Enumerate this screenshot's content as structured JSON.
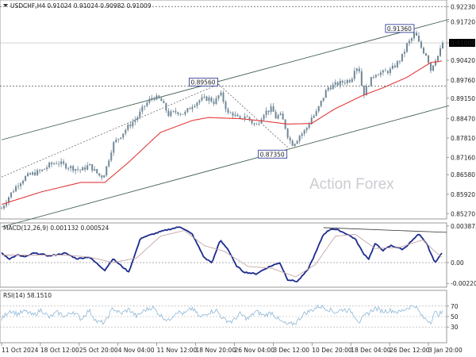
{
  "header": {
    "symbol_line": "USDCHF,H4  0.91024 0.91024 0.90982 0.91009"
  },
  "watermark": "Action Forex",
  "colors": {
    "candle": "#6f8796",
    "ma": "#e23a3a",
    "channel": "#41604c",
    "macd": "#1b2a8c",
    "signal": "#c4a6a6",
    "rsi": "#8fb7d6",
    "level_dash": "#555555",
    "price_box": "#ffffff"
  },
  "chart_data": [
    {
      "type": "candlestick",
      "name": "main",
      "title": "USDCHF,H4  0.91024 0.91024 0.90982 0.91009",
      "ylim": [
        0.8509,
        0.9245
      ],
      "y_ticks": [
        "0.92230",
        "0.91720",
        "0.91009",
        "0.90420",
        "0.89760",
        "0.89150",
        "0.88470",
        "0.87810",
        "0.87160",
        "0.86580",
        "0.85920",
        "0.85270"
      ],
      "y_tick_values": [
        0.9223,
        0.9172,
        0.91009,
        0.9042,
        0.8976,
        0.8915,
        0.8847,
        0.8781,
        0.8716,
        0.8658,
        0.8592,
        0.8527
      ],
      "current_price": 0.91009,
      "levels": [
        {
          "value": 0.9223,
          "label": "0.92230",
          "style": "dashed"
        },
        {
          "value": 0.8956,
          "label": "0.89560",
          "style": "dashed"
        }
      ],
      "annotations": [
        {
          "label": "0.89560",
          "value": 0.8956
        },
        {
          "label": "0.87350",
          "value": 0.8735
        },
        {
          "label": "0.91360",
          "value": 0.9136
        }
      ],
      "close_keypoints": [
        [
          0,
          0.8545
        ],
        [
          10,
          0.8588
        ],
        [
          20,
          0.8625
        ],
        [
          30,
          0.865
        ],
        [
          40,
          0.8662
        ],
        [
          50,
          0.867
        ],
        [
          60,
          0.869
        ],
        [
          70,
          0.87
        ],
        [
          80,
          0.8688
        ],
        [
          90,
          0.868
        ],
        [
          100,
          0.8672
        ],
        [
          110,
          0.869
        ],
        [
          118,
          0.8668
        ],
        [
          125,
          0.865
        ],
        [
          130,
          0.8665
        ],
        [
          140,
          0.876
        ],
        [
          150,
          0.879
        ],
        [
          160,
          0.8822
        ],
        [
          170,
          0.8848
        ],
        [
          180,
          0.889
        ],
        [
          190,
          0.892
        ],
        [
          200,
          0.891
        ],
        [
          210,
          0.886
        ],
        [
          220,
          0.887
        ],
        [
          230,
          0.8862
        ],
        [
          240,
          0.8892
        ],
        [
          250,
          0.891
        ],
        [
          260,
          0.8915
        ],
        [
          268,
          0.89
        ],
        [
          275,
          0.8932
        ],
        [
          280,
          0.89
        ],
        [
          285,
          0.8862
        ],
        [
          290,
          0.8865
        ],
        [
          300,
          0.884
        ],
        [
          305,
          0.8858
        ],
        [
          310,
          0.8848
        ],
        [
          320,
          0.882
        ],
        [
          330,
          0.8866
        ],
        [
          340,
          0.888
        ],
        [
          345,
          0.885
        ],
        [
          350,
          0.886
        ],
        [
          355,
          0.8835
        ],
        [
          360,
          0.879
        ],
        [
          365,
          0.876
        ],
        [
          370,
          0.877
        ],
        [
          375,
          0.879
        ],
        [
          380,
          0.88
        ],
        [
          385,
          0.882
        ],
        [
          390,
          0.885
        ],
        [
          395,
          0.886
        ],
        [
          400,
          0.889
        ],
        [
          410,
          0.895
        ],
        [
          420,
          0.896
        ],
        [
          430,
          0.897
        ],
        [
          440,
          0.8978
        ],
        [
          445,
          0.9025
        ],
        [
          450,
          0.901
        ],
        [
          455,
          0.8925
        ],
        [
          460,
          0.8955
        ],
        [
          470,
          0.9
        ],
        [
          480,
          0.9
        ],
        [
          490,
          0.901
        ],
        [
          500,
          0.904
        ],
        [
          505,
          0.906
        ],
        [
          510,
          0.9095
        ],
        [
          515,
          0.911
        ],
        [
          520,
          0.9136
        ],
        [
          525,
          0.91
        ],
        [
          530,
          0.9075
        ],
        [
          535,
          0.906
        ],
        [
          540,
          0.901
        ],
        [
          545,
          0.9045
        ],
        [
          550,
          0.906
        ],
        [
          555,
          0.9101
        ]
      ],
      "ma_keypoints": [
        [
          0,
          0.8558
        ],
        [
          50,
          0.86
        ],
        [
          100,
          0.8632
        ],
        [
          130,
          0.8632
        ],
        [
          160,
          0.87
        ],
        [
          200,
          0.88
        ],
        [
          240,
          0.884
        ],
        [
          260,
          0.885
        ],
        [
          300,
          0.8846
        ],
        [
          330,
          0.8838
        ],
        [
          360,
          0.8828
        ],
        [
          390,
          0.883
        ],
        [
          420,
          0.888
        ],
        [
          455,
          0.8925
        ],
        [
          480,
          0.895
        ],
        [
          510,
          0.8985
        ],
        [
          540,
          0.9035
        ],
        [
          555,
          0.904
        ]
      ],
      "channel_lines": [
        {
          "from": [
            0,
            0.8775
          ],
          "to": [
            563,
            0.918
          ]
        },
        {
          "from": [
            0,
            0.8482
          ],
          "to": [
            563,
            0.889
          ]
        },
        {
          "from": [
            0,
            0.865
          ],
          "to": [
            273,
            0.8962
          ],
          "style": "dotted"
        },
        {
          "from": [
            273,
            0.8962
          ],
          "to": [
            360,
            0.875
          ],
          "style": "dotted"
        }
      ]
    },
    {
      "type": "line",
      "name": "MACD",
      "title": "MACD(12,26,9) 0.001132 0.000524",
      "ylim": [
        -0.0026,
        0.0042
      ],
      "y_ticks": [
        "0.003873",
        "0.00",
        "-0.002201"
      ],
      "y_tick_values": [
        0.003873,
        0.0,
        -0.002201
      ],
      "series": [
        {
          "name": "MACD",
          "keypoints": [
            [
              0,
              0.001
            ],
            [
              10,
              0.0004
            ],
            [
              20,
              0.0008
            ],
            [
              30,
              0.0006
            ],
            [
              40,
              0.001
            ],
            [
              50,
              0.0009
            ],
            [
              60,
              0.0007
            ],
            [
              80,
              0.001
            ],
            [
              95,
              0.0004
            ],
            [
              110,
              0.0006
            ],
            [
              130,
              -0.0008
            ],
            [
              140,
              0.0004
            ],
            [
              160,
              -0.001
            ],
            [
              175,
              0.0026
            ],
            [
              190,
              0.003
            ],
            [
              205,
              0.0034
            ],
            [
              225,
              0.0038
            ],
            [
              240,
              0.003
            ],
            [
              255,
              0.0005
            ],
            [
              265,
              0.0
            ],
            [
              275,
              0.0024
            ],
            [
              285,
              0.0014
            ],
            [
              295,
              -0.0003
            ],
            [
              305,
              -0.001
            ],
            [
              320,
              -0.0012
            ],
            [
              335,
              -0.0005
            ],
            [
              350,
              0.0
            ],
            [
              360,
              -0.0018
            ],
            [
              372,
              -0.002
            ],
            [
              385,
              -0.0008
            ],
            [
              395,
              0.001
            ],
            [
              405,
              0.003
            ],
            [
              415,
              0.0036
            ],
            [
              425,
              0.0034
            ],
            [
              435,
              0.003
            ],
            [
              445,
              0.0025
            ],
            [
              455,
              0.001
            ],
            [
              462,
              0.0004
            ],
            [
              470,
              0.002
            ],
            [
              480,
              0.0013
            ],
            [
              490,
              0.0018
            ],
            [
              505,
              0.0014
            ],
            [
              515,
              0.0022
            ],
            [
              525,
              0.003
            ],
            [
              535,
              0.002
            ],
            [
              545,
              0.0
            ],
            [
              555,
              0.0011
            ]
          ]
        },
        {
          "name": "Signal",
          "keypoints": [
            [
              0,
              0.0008
            ],
            [
              40,
              0.0008
            ],
            [
              80,
              0.0008
            ],
            [
              110,
              0.0006
            ],
            [
              140,
              0.0
            ],
            [
              170,
              0.0005
            ],
            [
              200,
              0.0028
            ],
            [
              230,
              0.0034
            ],
            [
              255,
              0.0018
            ],
            [
              280,
              0.0012
            ],
            [
              310,
              -0.0004
            ],
            [
              340,
              -0.0006
            ],
            [
              370,
              -0.0015
            ],
            [
              395,
              -0.0002
            ],
            [
              420,
              0.0028
            ],
            [
              445,
              0.003
            ],
            [
              470,
              0.0015
            ],
            [
              500,
              0.0016
            ],
            [
              530,
              0.0024
            ],
            [
              545,
              0.0012
            ],
            [
              555,
              0.0005
            ]
          ]
        }
      ],
      "trendlines": [
        {
          "from": [
            405,
            0.0037
          ],
          "to": [
            560,
            0.0032
          ]
        }
      ]
    },
    {
      "type": "line",
      "name": "RSI",
      "title": "RSI(14) 58.1510",
      "ylim": [
        0,
        100
      ],
      "y_ticks": [
        "70",
        "50",
        "30"
      ],
      "y_tick_values": [
        70,
        50,
        30
      ],
      "series": [
        {
          "name": "RSI",
          "keypoints": [
            [
              0,
              45
            ],
            [
              10,
              62
            ],
            [
              20,
              55
            ],
            [
              30,
              60
            ],
            [
              40,
              52
            ],
            [
              50,
              63
            ],
            [
              60,
              48
            ],
            [
              70,
              58
            ],
            [
              80,
              50
            ],
            [
              90,
              60
            ],
            [
              100,
              45
            ],
            [
              110,
              62
            ],
            [
              120,
              40
            ],
            [
              130,
              38
            ],
            [
              140,
              66
            ],
            [
              150,
              55
            ],
            [
              160,
              64
            ],
            [
              170,
              50
            ],
            [
              180,
              62
            ],
            [
              190,
              68
            ],
            [
              200,
              52
            ],
            [
              210,
              42
            ],
            [
              220,
              60
            ],
            [
              230,
              55
            ],
            [
              240,
              66
            ],
            [
              250,
              48
            ],
            [
              260,
              58
            ],
            [
              270,
              62
            ],
            [
              280,
              44
            ],
            [
              290,
              40
            ],
            [
              300,
              55
            ],
            [
              310,
              45
            ],
            [
              320,
              60
            ],
            [
              330,
              52
            ],
            [
              340,
              58
            ],
            [
              350,
              42
            ],
            [
              360,
              34
            ],
            [
              370,
              38
            ],
            [
              380,
              55
            ],
            [
              390,
              62
            ],
            [
              400,
              70
            ],
            [
              410,
              65
            ],
            [
              420,
              58
            ],
            [
              430,
              64
            ],
            [
              440,
              60
            ],
            [
              450,
              40
            ],
            [
              460,
              55
            ],
            [
              470,
              66
            ],
            [
              480,
              60
            ],
            [
              490,
              62
            ],
            [
              500,
              58
            ],
            [
              510,
              66
            ],
            [
              520,
              72
            ],
            [
              530,
              48
            ],
            [
              540,
              40
            ],
            [
              545,
              58
            ],
            [
              550,
              54
            ],
            [
              555,
              58
            ]
          ]
        }
      ]
    }
  ],
  "x_axis": {
    "tick_labels": [
      "11 Oct 2024",
      "18 Oct 12:00",
      "25 Oct 20:00",
      "4 Nov 04:00",
      "11 Nov 12:00",
      "18 Nov 20:00",
      "26 Nov 04:00",
      "3 Dec 12:00",
      "10 Dec 20:00",
      "18 Dec 04:00",
      "26 Dec 12:00",
      "3 Jan 20:00"
    ]
  }
}
